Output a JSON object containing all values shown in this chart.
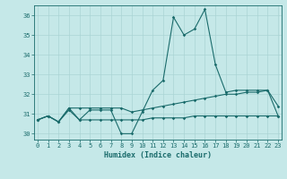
{
  "xlabel": "Humidex (Indice chaleur)",
  "bg_color": "#c5e8e8",
  "line_color": "#1a6b6b",
  "grid_color": "#aad4d4",
  "x_ticks": [
    0,
    1,
    2,
    3,
    4,
    5,
    6,
    7,
    8,
    9,
    10,
    11,
    12,
    13,
    14,
    15,
    16,
    17,
    18,
    19,
    20,
    21,
    22,
    23
  ],
  "y_ticks": [
    30,
    31,
    32,
    33,
    34,
    35,
    36
  ],
  "ylim": [
    29.7,
    36.5
  ],
  "xlim": [
    -0.3,
    23.3
  ],
  "series1": [
    30.7,
    30.9,
    30.6,
    31.3,
    30.7,
    31.2,
    31.2,
    31.2,
    30.0,
    30.0,
    31.1,
    32.2,
    32.7,
    35.9,
    35.0,
    35.3,
    36.3,
    33.5,
    32.1,
    32.2,
    32.2,
    32.2,
    32.2,
    31.4
  ],
  "series2": [
    30.7,
    30.9,
    30.6,
    31.3,
    31.3,
    31.3,
    31.3,
    31.3,
    31.3,
    31.1,
    31.2,
    31.3,
    31.4,
    31.5,
    31.6,
    31.7,
    31.8,
    31.9,
    32.0,
    32.0,
    32.1,
    32.1,
    32.2,
    30.9
  ],
  "series3": [
    30.7,
    30.9,
    30.6,
    31.2,
    30.7,
    30.7,
    30.7,
    30.7,
    30.7,
    30.7,
    30.7,
    30.8,
    30.8,
    30.8,
    30.8,
    30.9,
    30.9,
    30.9,
    30.9,
    30.9,
    30.9,
    30.9,
    30.9,
    30.9
  ]
}
